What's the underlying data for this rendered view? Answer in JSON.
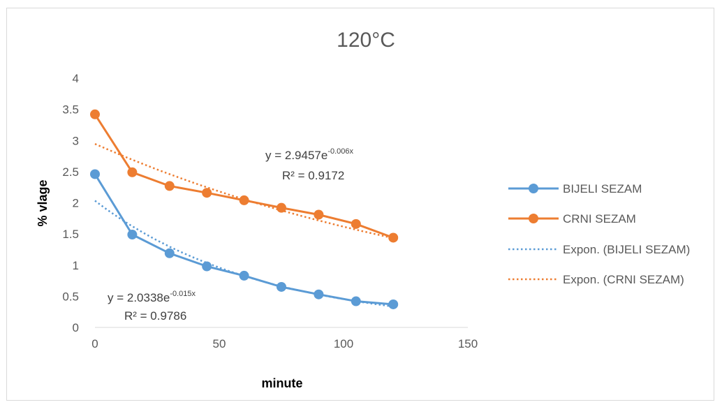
{
  "chart_data": {
    "type": "line",
    "title": "120°C",
    "xlabel": "minute",
    "ylabel": "% vlage",
    "xlim": [
      0,
      150
    ],
    "ylim": [
      0,
      4
    ],
    "x_ticks": [
      "0",
      "50",
      "100",
      "150"
    ],
    "y_ticks": [
      "0",
      "0.5",
      "1",
      "1.5",
      "2",
      "2.5",
      "3",
      "3.5",
      "4"
    ],
    "x": [
      0,
      15,
      30,
      45,
      60,
      75,
      90,
      105,
      120
    ],
    "series": [
      {
        "name": "BIJELI SEZAM",
        "values": [
          2.46,
          1.49,
          1.19,
          0.98,
          0.83,
          0.65,
          0.53,
          0.42,
          0.37
        ],
        "color": "#5B9BD5"
      },
      {
        "name": "CRNI SEZAM",
        "values": [
          3.42,
          2.49,
          2.27,
          2.16,
          2.04,
          1.92,
          1.81,
          1.66,
          1.44
        ],
        "color": "#ED7D31"
      }
    ],
    "trendlines": [
      {
        "name": "Expon. (BIJELI SEZAM)",
        "type": "exponential",
        "a": 2.0338,
        "b": -0.015,
        "color": "#5B9BD5",
        "equation": {
          "prefix": "y = 2.0338e",
          "exponent": "-0.015x"
        },
        "r2": "R² = 0.9786"
      },
      {
        "name": "Expon. (CRNI SEZAM)",
        "type": "exponential",
        "a": 2.9457,
        "b": -0.006,
        "color": "#ED7D31",
        "equation": {
          "prefix": "y = 2.9457e",
          "exponent": "-0.006x"
        },
        "r2": "R² = 0.9172"
      }
    ],
    "grid": false,
    "legend": "right"
  }
}
